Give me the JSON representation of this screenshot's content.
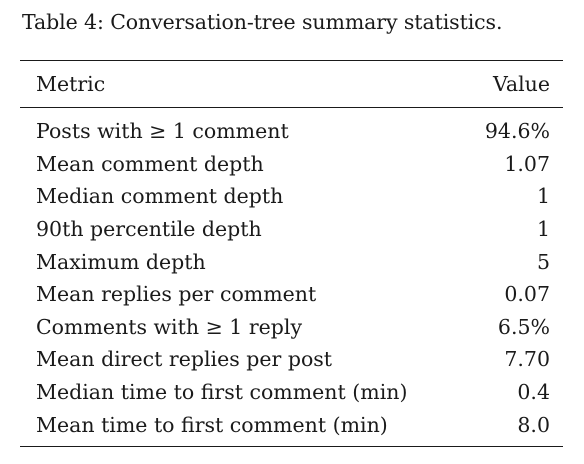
{
  "caption": "Table 4: Conversation-tree summary statistics.",
  "table": {
    "headers": {
      "metric": "Metric",
      "value": "Value"
    },
    "rows": [
      {
        "metric": "Posts with ≥ 1 comment",
        "value": "94.6%"
      },
      {
        "metric": "Mean comment depth",
        "value": "1.07"
      },
      {
        "metric": "Median comment depth",
        "value": "1"
      },
      {
        "metric": "90th percentile depth",
        "value": "1"
      },
      {
        "metric": "Maximum depth",
        "value": "5"
      },
      {
        "metric": "Mean replies per comment",
        "value": "0.07"
      },
      {
        "metric": "Comments with ≥ 1 reply",
        "value": "6.5%"
      },
      {
        "metric": "Mean direct replies per post",
        "value": "7.70"
      },
      {
        "metric": "Median time to first comment (min)",
        "value": "0.4"
      },
      {
        "metric": "Mean time to first comment (min)",
        "value": "8.0"
      }
    ]
  }
}
